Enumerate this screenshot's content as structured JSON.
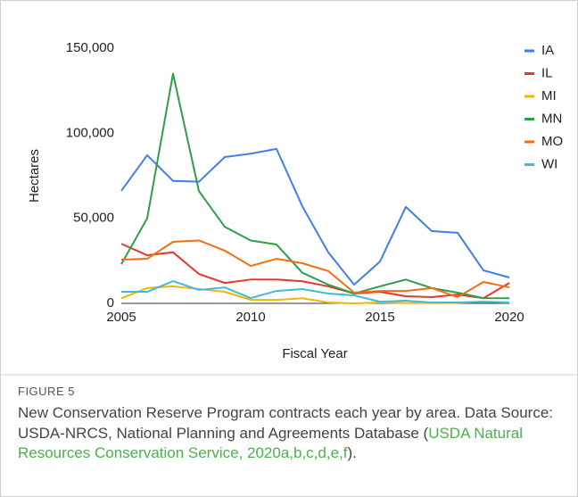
{
  "chart_data": {
    "type": "line",
    "y_label": "Hectares",
    "x_label": "Fiscal Year",
    "x": [
      2005,
      2006,
      2007,
      2008,
      2009,
      2010,
      2011,
      2012,
      2013,
      2014,
      2015,
      2016,
      2017,
      2018,
      2019,
      2020
    ],
    "xlim": [
      2005,
      2020
    ],
    "xticks": [
      2005,
      2010,
      2015,
      2020
    ],
    "ylim": [
      0,
      150000
    ],
    "yticks": [
      0,
      {
        "value": 50000,
        "label": "50,000"
      },
      {
        "value": 100000,
        "label": "100,000"
      },
      {
        "value": 150000,
        "label": "150,000"
      }
    ],
    "grid": false,
    "legend": "right",
    "series": [
      {
        "name": "IA",
        "color": "#3f7fe9",
        "values": [
          66100,
          87100,
          72000,
          71500,
          86000,
          88000,
          90800,
          57000,
          30000,
          11000,
          24600,
          56700,
          42500,
          41500,
          19400,
          15200
        ]
      },
      {
        "name": "IL",
        "color": "#e5382d",
        "values": [
          35000,
          28300,
          30000,
          17300,
          12000,
          14000,
          14000,
          13000,
          10000,
          5800,
          6800,
          4200,
          3700,
          5200,
          3100,
          12000
        ]
      },
      {
        "name": "MI",
        "color": "#f4b400",
        "values": [
          3000,
          9000,
          10000,
          8400,
          6800,
          2100,
          2000,
          3000,
          500,
          0,
          500,
          200,
          200,
          300,
          1000,
          500
        ]
      },
      {
        "name": "MN",
        "color": "#2e9e47",
        "values": [
          23000,
          50000,
          135000,
          66000,
          45000,
          37000,
          34600,
          18000,
          11000,
          5800,
          10000,
          14000,
          9000,
          6300,
          3100,
          3000
        ]
      },
      {
        "name": "MO",
        "color": "#f46d11",
        "values": [
          25700,
          26200,
          36200,
          37000,
          31000,
          22000,
          26200,
          23600,
          19000,
          6300,
          7300,
          7300,
          9000,
          3700,
          12600,
          9400
        ]
      },
      {
        "name": "WI",
        "color": "#3dbbd8",
        "values": [
          6800,
          6800,
          13100,
          7900,
          9400,
          3100,
          7300,
          8400,
          5800,
          4700,
          1000,
          1600,
          500,
          500,
          1000,
          500
        ]
      }
    ]
  },
  "figure": {
    "label": "FIGURE 5",
    "caption": "New Conservation Reserve Program contracts each year by area. Data Source: USDA-NRCS, National Planning and Agreements Database (",
    "citation": "USDA Natural Resources Conservation Service, 2020a,b,c,d,e,f",
    "caption_end": ")."
  }
}
